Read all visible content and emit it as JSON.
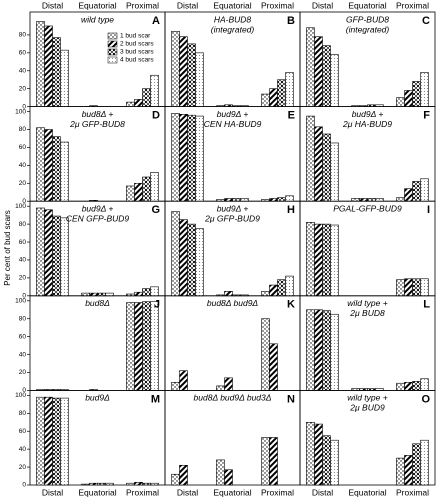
{
  "y_axis_label": "Per cent of bud scars",
  "top_categories": [
    [
      "Distal",
      "Equatorial",
      "Proximal"
    ],
    [
      "Distal",
      "Equatorial",
      "Proximal"
    ],
    [
      "Distal",
      "Equatorial",
      "Proximal"
    ]
  ],
  "bottom_categories": [
    [
      "Distal",
      "Equatorial",
      "Proximal"
    ],
    [
      "Distal",
      "Equatorial",
      "Proximal"
    ],
    [
      "Distal",
      "Equatorial",
      "Proximal"
    ]
  ],
  "patterns": [
    "dots",
    "hatch",
    "cross",
    "stipple"
  ],
  "chart_data": [
    {
      "type": "bar",
      "letter": "A",
      "title": [
        "wild type"
      ],
      "ylim": [
        0,
        100
      ],
      "yticks": [
        0,
        20,
        40,
        60,
        80
      ],
      "series": [
        {
          "name": "1 bud scar",
          "values": [
            95,
            0,
            5
          ]
        },
        {
          "name": "2 bud scars",
          "values": [
            90,
            1,
            8
          ]
        },
        {
          "name": "3 bud scars",
          "values": [
            77,
            0,
            20
          ]
        },
        {
          "name": "4 bud scars",
          "values": [
            63,
            0,
            35
          ]
        }
      ]
    },
    {
      "type": "bar",
      "letter": "B",
      "title": [
        "HA-BUD8",
        "(integrated)"
      ],
      "ylim": [
        0,
        100
      ],
      "series": [
        {
          "values": [
            84,
            1,
            14
          ]
        },
        {
          "values": [
            78,
            2,
            20
          ]
        },
        {
          "values": [
            70,
            1,
            30
          ]
        },
        {
          "values": [
            60,
            1,
            38
          ]
        }
      ]
    },
    {
      "type": "bar",
      "letter": "C",
      "title": [
        "GFP-BUD8",
        "(integrated)"
      ],
      "ylim": [
        0,
        100
      ],
      "series": [
        {
          "values": [
            88,
            1,
            10
          ]
        },
        {
          "values": [
            78,
            1,
            18
          ]
        },
        {
          "values": [
            68,
            2,
            28
          ]
        },
        {
          "values": [
            58,
            2,
            38
          ]
        }
      ]
    },
    {
      "type": "bar",
      "letter": "D",
      "title": [
        "bud8Δ +",
        "2μ GFP-BUD8"
      ],
      "ylim": [
        0,
        100
      ],
      "yticks": [
        0,
        20,
        40,
        60,
        80,
        100
      ],
      "series": [
        {
          "values": [
            82,
            0,
            17
          ]
        },
        {
          "values": [
            80,
            1,
            20
          ]
        },
        {
          "values": [
            72,
            0,
            27
          ]
        },
        {
          "values": [
            66,
            0,
            32
          ]
        }
      ]
    },
    {
      "type": "bar",
      "letter": "E",
      "title": [
        "bud9Δ +",
        "CEN HA-BUD9"
      ],
      "ylim": [
        0,
        100
      ],
      "series": [
        {
          "values": [
            98,
            2,
            2
          ]
        },
        {
          "values": [
            97,
            3,
            3
          ]
        },
        {
          "values": [
            96,
            3,
            4
          ]
        },
        {
          "values": [
            95,
            3,
            6
          ]
        }
      ]
    },
    {
      "type": "bar",
      "letter": "F",
      "title": [
        "bud9Δ +",
        "2μ HA-BUD9"
      ],
      "ylim": [
        0,
        100
      ],
      "series": [
        {
          "values": [
            95,
            3,
            4
          ]
        },
        {
          "values": [
            83,
            3,
            14
          ]
        },
        {
          "values": [
            75,
            3,
            22
          ]
        },
        {
          "values": [
            65,
            3,
            25
          ]
        }
      ]
    },
    {
      "type": "bar",
      "letter": "G",
      "title": [
        "bud9Δ +",
        "CEN GFP-BUD9"
      ],
      "ylim": [
        0,
        100
      ],
      "yticks": [
        0,
        20,
        40,
        60,
        80,
        100
      ],
      "series": [
        {
          "values": [
            98,
            3,
            2
          ]
        },
        {
          "values": [
            96,
            3,
            4
          ]
        },
        {
          "values": [
            89,
            3,
            8
          ]
        },
        {
          "values": [
            87,
            3,
            10
          ]
        }
      ]
    },
    {
      "type": "bar",
      "letter": "H",
      "title": [
        "bud9Δ +",
        "2μ GFP-BUD9"
      ],
      "ylim": [
        0,
        100
      ],
      "series": [
        {
          "values": [
            94,
            1,
            5
          ]
        },
        {
          "values": [
            85,
            5,
            12
          ]
        },
        {
          "values": [
            80,
            1,
            18
          ]
        },
        {
          "values": [
            75,
            1,
            22
          ]
        }
      ]
    },
    {
      "type": "bar",
      "letter": "I",
      "title": [
        "PGAL-GFP-BUD9"
      ],
      "ylim": [
        0,
        100
      ],
      "series": [
        {
          "values": [
            82,
            0,
            18
          ]
        },
        {
          "values": [
            80,
            0,
            19
          ]
        },
        {
          "values": [
            80,
            0,
            19
          ]
        },
        {
          "values": [
            79,
            0,
            19
          ]
        }
      ]
    },
    {
      "type": "bar",
      "letter": "J",
      "title": [
        "bud8Δ"
      ],
      "ylim": [
        0,
        100
      ],
      "yticks": [
        0,
        20,
        40,
        60,
        80,
        100
      ],
      "series": [
        {
          "values": [
            1,
            0,
            98
          ]
        },
        {
          "values": [
            1,
            1,
            98
          ]
        },
        {
          "values": [
            1,
            0,
            99
          ]
        },
        {
          "values": [
            1,
            0,
            99
          ]
        }
      ]
    },
    {
      "type": "bar",
      "letter": "K",
      "title": [
        "bud8Δ bud9Δ"
      ],
      "ylim": [
        0,
        100
      ],
      "series": [
        {
          "values": [
            9,
            5,
            80
          ]
        },
        {
          "values": [
            22,
            14,
            52
          ]
        }
      ]
    },
    {
      "type": "bar",
      "letter": "L",
      "title": [
        "wild type +",
        "2μ BUD8"
      ],
      "ylim": [
        0,
        100
      ],
      "series": [
        {
          "values": [
            90,
            2,
            8
          ]
        },
        {
          "values": [
            90,
            2,
            9
          ]
        },
        {
          "values": [
            89,
            2,
            10
          ]
        },
        {
          "values": [
            85,
            2,
            13
          ]
        }
      ]
    },
    {
      "type": "bar",
      "letter": "M",
      "title": [
        "bud9Δ"
      ],
      "ylim": [
        0,
        100
      ],
      "yticks": [
        0,
        20,
        40,
        60,
        80,
        100
      ],
      "series": [
        {
          "values": [
            98,
            1,
            2
          ]
        },
        {
          "values": [
            98,
            2,
            3
          ]
        },
        {
          "values": [
            97,
            2,
            2
          ]
        },
        {
          "values": [
            97,
            2,
            2
          ]
        }
      ]
    },
    {
      "type": "bar",
      "letter": "N",
      "title": [
        "bud8Δ bud9Δ bud3Δ"
      ],
      "ylim": [
        0,
        100
      ],
      "series": [
        {
          "values": [
            12,
            28,
            53
          ]
        },
        {
          "values": [
            22,
            17,
            53
          ]
        }
      ]
    },
    {
      "type": "bar",
      "letter": "O",
      "title": [
        "wild type +",
        "2μ BUD9"
      ],
      "ylim": [
        0,
        100
      ],
      "series": [
        {
          "values": [
            70,
            0,
            30
          ]
        },
        {
          "values": [
            68,
            0,
            33
          ]
        },
        {
          "values": [
            55,
            0,
            46
          ]
        },
        {
          "values": [
            50,
            0,
            50
          ]
        }
      ]
    }
  ]
}
